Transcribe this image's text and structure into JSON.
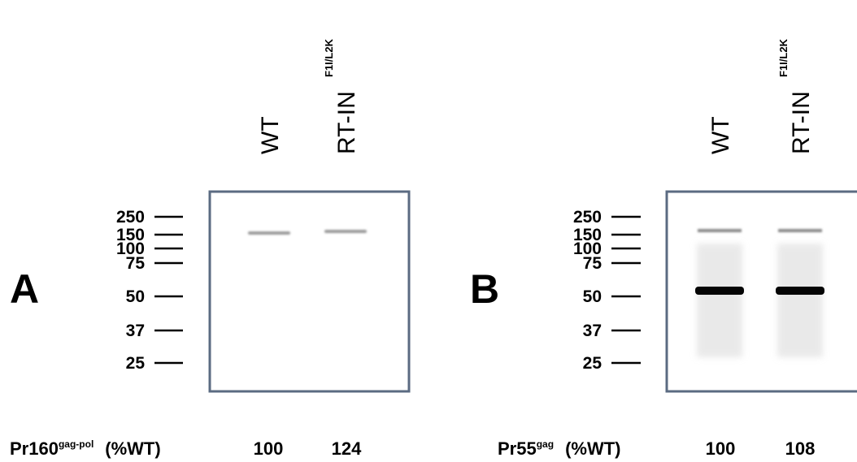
{
  "panels": [
    {
      "letter": "A",
      "lanes": [
        {
          "label": "WT"
        },
        {
          "label": "RT-IN",
          "sup": "F1I/L2K"
        }
      ],
      "markers": [
        "250",
        "150",
        "100",
        "75",
        "50",
        "37",
        "25"
      ],
      "quant": {
        "protein": "Pr160",
        "sup": "gag-pol",
        "unit": "(%WT)",
        "values": [
          "100",
          "124"
        ]
      }
    },
    {
      "letter": "B",
      "lanes": [
        {
          "label": "WT"
        },
        {
          "label": "RT-IN",
          "sup": "F1I/L2K"
        }
      ],
      "markers": [
        "250",
        "150",
        "100",
        "75",
        "50",
        "37",
        "25"
      ],
      "quant": {
        "protein": "Pr55",
        "sup": "gag",
        "unit": "(%WT)",
        "values": [
          "100",
          "108"
        ]
      }
    }
  ]
}
